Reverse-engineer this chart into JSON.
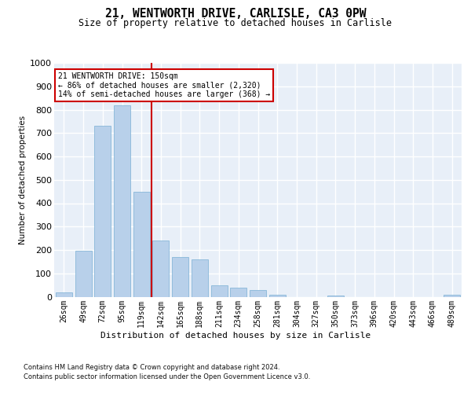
{
  "title": "21, WENTWORTH DRIVE, CARLISLE, CA3 0PW",
  "subtitle": "Size of property relative to detached houses in Carlisle",
  "xlabel": "Distribution of detached houses by size in Carlisle",
  "ylabel": "Number of detached properties",
  "footer_line1": "Contains HM Land Registry data © Crown copyright and database right 2024.",
  "footer_line2": "Contains public sector information licensed under the Open Government Licence v3.0.",
  "categories": [
    "26sqm",
    "49sqm",
    "72sqm",
    "95sqm",
    "119sqm",
    "142sqm",
    "165sqm",
    "188sqm",
    "211sqm",
    "234sqm",
    "258sqm",
    "281sqm",
    "304sqm",
    "327sqm",
    "350sqm",
    "373sqm",
    "396sqm",
    "420sqm",
    "443sqm",
    "466sqm",
    "489sqm"
  ],
  "values": [
    20,
    195,
    730,
    820,
    450,
    240,
    170,
    160,
    50,
    40,
    30,
    10,
    0,
    0,
    5,
    0,
    0,
    0,
    0,
    0,
    10
  ],
  "bar_color": "#b8d0ea",
  "bar_edge_color": "#7aafd4",
  "bg_color": "#e8eff8",
  "grid_color": "#ffffff",
  "red_line_index": 5,
  "annotation_line1": "21 WENTWORTH DRIVE: 150sqm",
  "annotation_line2": "← 86% of detached houses are smaller (2,320)",
  "annotation_line3": "14% of semi-detached houses are larger (368) →",
  "annotation_box_edgecolor": "#cc0000",
  "ylim": [
    0,
    1000
  ],
  "yticks": [
    0,
    100,
    200,
    300,
    400,
    500,
    600,
    700,
    800,
    900,
    1000
  ]
}
